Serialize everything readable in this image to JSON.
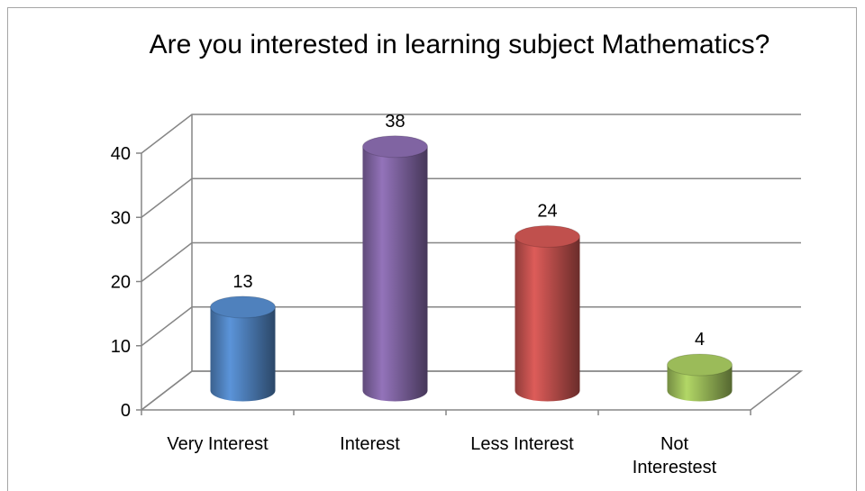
{
  "chart_data": {
    "type": "bar3d",
    "title": "Are you interested in learning subject Mathematics?",
    "categories": [
      "Very Interest",
      "Interest",
      "Less Interest",
      "Not Interestest"
    ],
    "values": [
      13,
      38,
      24,
      4
    ],
    "colors": [
      "#4f81bd",
      "#8064a2",
      "#c0504d",
      "#9bbb59"
    ],
    "ylim": [
      0,
      40
    ],
    "yticks": [
      0,
      10,
      20,
      30,
      40
    ],
    "grid": true
  }
}
